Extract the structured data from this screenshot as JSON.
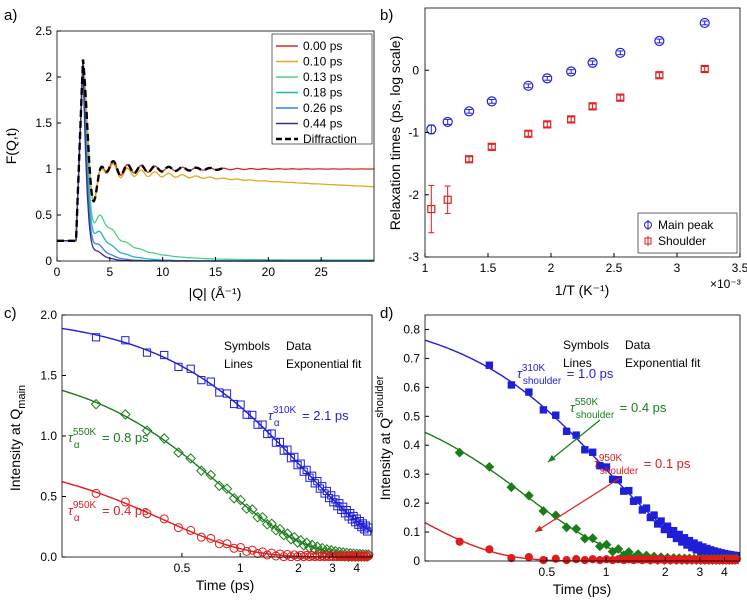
{
  "colors": {
    "axis": "#000000",
    "blue": "#1f1fd8",
    "green": "#1a7d1a",
    "red": "#e01c1c",
    "line_0": "#d62728",
    "line_10": "#e5a823",
    "line_13": "#4fcf8a",
    "line_18": "#22b5c9",
    "line_26": "#3b7fe0",
    "line_44": "#3a2a8f",
    "diffraction": "#000000"
  },
  "chart_data": [
    {
      "panel": "a)",
      "type": "line",
      "xlabel": "|Q| (Å⁻¹)",
      "ylabel": "F(Q,t)",
      "xlim": [
        0,
        30
      ],
      "ylim": [
        0,
        2.5
      ],
      "xticks": [
        "0",
        "5",
        "10",
        "15",
        "20",
        "25"
      ],
      "yticks": [
        "0",
        "0.5",
        "1",
        "1.5",
        "2",
        "2.5"
      ],
      "legend_position": "top-right",
      "series": [
        {
          "name": "0.00 ps",
          "color_key": "line_0",
          "final": 1.0,
          "damp": 0.0
        },
        {
          "name": "0.10 ps",
          "color_key": "line_10",
          "final": 0.88,
          "damp": 0.006
        },
        {
          "name": "0.13 ps",
          "color_key": "line_13",
          "final": 0.02,
          "damp": 0.12
        },
        {
          "name": "0.18 ps",
          "color_key": "line_18",
          "final": 0.0,
          "damp": 0.2
        },
        {
          "name": "0.26 ps",
          "color_key": "line_26",
          "final": 0.0,
          "damp": 0.32
        },
        {
          "name": "0.44 ps",
          "color_key": "line_44",
          "final": 0.0,
          "damp": 0.45
        },
        {
          "name": "Diffraction",
          "color_key": "diffraction",
          "dashed": true,
          "x_end": 16,
          "final": 1.0,
          "damp": 0.0
        }
      ]
    },
    {
      "panel": "b)",
      "type": "scatter",
      "xlabel": "1/T (K⁻¹)",
      "ylabel": "Relaxation times (ps, log scale)",
      "x_exponent": "×10⁻³",
      "xlim": [
        1.0,
        3.5
      ],
      "ylim": [
        -3,
        1
      ],
      "xticks": [
        "1",
        "1.5",
        "2",
        "2.5",
        "3",
        "3.5"
      ],
      "yticks": [
        "-3",
        "-2",
        "-1",
        "0"
      ],
      "legend_position": "bottom-right",
      "series": [
        {
          "name": "Main peak",
          "marker": "circle",
          "color_key": "blue",
          "x": [
            1.05,
            1.18,
            1.35,
            1.53,
            1.82,
            1.97,
            2.16,
            2.33,
            2.55,
            2.86,
            3.22
          ],
          "y": [
            -0.95,
            -0.83,
            -0.66,
            -0.5,
            -0.25,
            -0.13,
            -0.02,
            0.12,
            0.28,
            0.47,
            0.76
          ],
          "err": [
            0.07,
            0.04,
            0.03,
            0.03,
            0.03,
            0.03,
            0.03,
            0.03,
            0.03,
            0.03,
            0.03
          ]
        },
        {
          "name": "Shoulder",
          "marker": "square",
          "color_key": "red",
          "x": [
            1.05,
            1.18,
            1.35,
            1.53,
            1.82,
            1.97,
            2.16,
            2.33,
            2.55,
            2.86,
            3.22
          ],
          "y": [
            -2.23,
            -2.08,
            -1.43,
            -1.23,
            -1.02,
            -0.87,
            -0.79,
            -0.58,
            -0.44,
            -0.08,
            0.02
          ],
          "err": [
            0.38,
            0.22,
            0.04,
            0.04,
            0.04,
            0.04,
            0.04,
            0.04,
            0.04,
            0.04,
            0.04
          ]
        }
      ]
    },
    {
      "panel": "c)",
      "type": "scatter",
      "xscale": "log",
      "xlabel": "Time (ps)",
      "ylabel": "Intensity at Q",
      "ylabel_sub": "main",
      "xlim": [
        0.12,
        4.8
      ],
      "ylim": [
        0,
        2.0
      ],
      "xticks": [
        0.5,
        1,
        2,
        3,
        4
      ],
      "yticks": [
        "0.0",
        "0.5",
        "1.0",
        "1.5",
        "2.0"
      ],
      "legend_lines": [
        "Symbols",
        "Data",
        "Lines",
        "Exponential fit"
      ],
      "series": [
        {
          "name": "310K",
          "marker": "square-open",
          "color_key": "blue",
          "A": 2.0,
          "tau": 2.1,
          "scatter": 0.02
        },
        {
          "name": "550K",
          "marker": "diamond-open",
          "color_key": "green",
          "A": 1.6,
          "tau": 0.8,
          "scatter": 0.015
        },
        {
          "name": "950K",
          "marker": "circle-open",
          "color_key": "red",
          "A": 0.84,
          "tau": 0.4,
          "scatter": 0.01
        }
      ],
      "annotations": [
        {
          "sym": "τ",
          "sub": "α",
          "sup": "310K",
          "text": " = 2.1 ps",
          "color_key": "blue"
        },
        {
          "sym": "τ",
          "sub": "α",
          "sup": "550K",
          "text": " = 0.8 ps",
          "color_key": "green"
        },
        {
          "sym": "τ",
          "sub": "α",
          "sup": "950K",
          "text": " = 0.4 ps",
          "color_key": "red"
        }
      ]
    },
    {
      "panel": "d)",
      "type": "scatter",
      "xscale": "log",
      "xlabel": "Time (ps)",
      "ylabel": "Intensity at Q",
      "ylabel_sub": "shoulder",
      "xlim": [
        0.12,
        4.8
      ],
      "ylim": [
        0,
        0.85
      ],
      "xticks": [
        0.5,
        1,
        2,
        3,
        4
      ],
      "yticks": [
        "0",
        "0.1",
        "0.2",
        "0.3",
        "0.4",
        "0.5",
        "0.6",
        "0.7",
        "0.8"
      ],
      "legend_lines": [
        "Symbols",
        "Data",
        "Lines",
        "Exponential fit"
      ],
      "series": [
        {
          "name": "310K",
          "marker": "square-filled",
          "color_key": "blue",
          "A": 0.86,
          "tau": 1.0,
          "scatter": 0.01
        },
        {
          "name": "550K",
          "marker": "diamond-filled",
          "color_key": "green",
          "A": 0.6,
          "tau": 0.4,
          "scatter": 0.008
        },
        {
          "name": "950K",
          "marker": "circle-filled",
          "color_key": "red",
          "A": 0.44,
          "tau": 0.1,
          "scatter": 0.006
        }
      ],
      "annotations": [
        {
          "sym": "τ",
          "sub": "shoulder",
          "sup": "310K",
          "text": " = 1.0 ps",
          "color_key": "blue"
        },
        {
          "sym": "τ",
          "sub": "shoulder",
          "sup": "550K",
          "text": " = 0.4 ps",
          "color_key": "green"
        },
        {
          "sym": "τ",
          "sub": "shoulder",
          "sup": "950K",
          "text": " = 0.1 ps",
          "color_key": "red"
        }
      ]
    }
  ]
}
